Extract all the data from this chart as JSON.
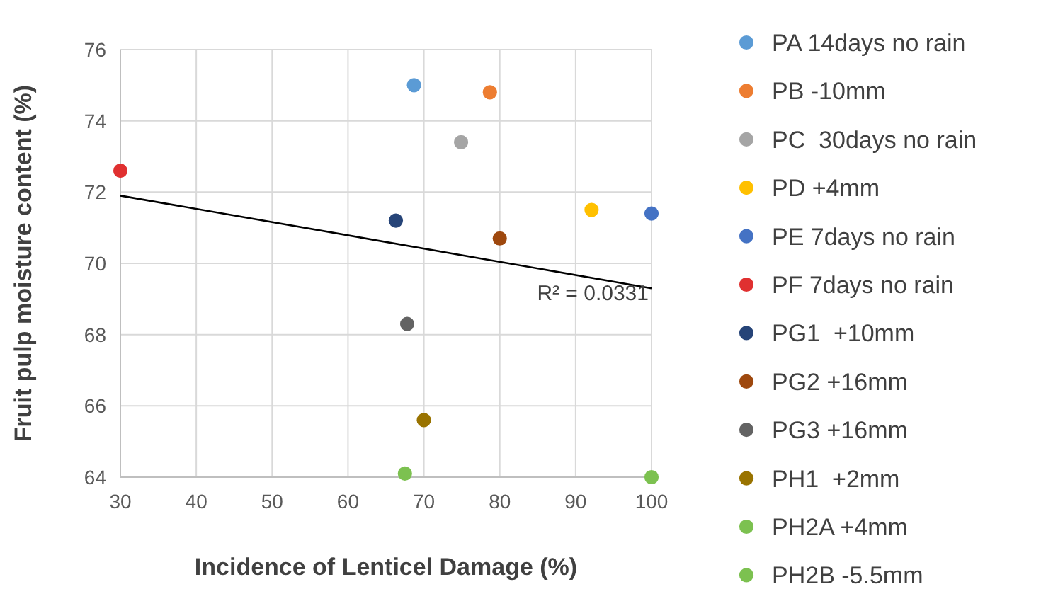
{
  "chart_data": {
    "type": "scatter",
    "xlabel": "Incidence of Lenticel Damage (%)",
    "ylabel": "Fruit pulp moisture content (%)",
    "xlim": [
      30,
      100
    ],
    "xticks": [
      30,
      40,
      50,
      60,
      70,
      80,
      90,
      100
    ],
    "ylim": [
      64,
      76
    ],
    "yticks": [
      64,
      66,
      68,
      70,
      72,
      74,
      76
    ],
    "grid": true,
    "legend": "right",
    "marker": "circle",
    "annotations": [
      "R² = 0.0331"
    ],
    "series": [
      {
        "name": "PA 14days no rain",
        "color": "#5b9bd5",
        "x": [
          68.7
        ],
        "values": [
          75.0
        ]
      },
      {
        "name": "PB -10mm",
        "color": "#ed7d31",
        "x": [
          78.7
        ],
        "values": [
          74.8
        ]
      },
      {
        "name": "PC  30days no rain",
        "color": "#a5a5a5",
        "x": [
          74.9
        ],
        "values": [
          73.4
        ]
      },
      {
        "name": "PD +4mm",
        "color": "#ffc000",
        "x": [
          92.1
        ],
        "values": [
          71.5
        ]
      },
      {
        "name": "PE 7days no rain",
        "color": "#4472c4",
        "x": [
          100
        ],
        "values": [
          71.4
        ]
      },
      {
        "name": "PF 7days no rain",
        "color": "#e03030",
        "x": [
          30
        ],
        "values": [
          72.6
        ]
      },
      {
        "name": "PG1  +10mm",
        "color": "#264478",
        "x": [
          66.3
        ],
        "values": [
          71.2
        ]
      },
      {
        "name": "PG2 +16mm",
        "color": "#9e480e",
        "x": [
          80
        ],
        "values": [
          70.7
        ]
      },
      {
        "name": "PG3 +16mm",
        "color": "#636363",
        "x": [
          67.8
        ],
        "values": [
          68.3
        ]
      },
      {
        "name": "PH1  +2mm",
        "color": "#997300",
        "x": [
          70
        ],
        "values": [
          65.6
        ]
      },
      {
        "name": "PH2A +4mm",
        "color": "#7cc150",
        "x": [
          67.5
        ],
        "values": [
          64.1
        ]
      },
      {
        "name": "PH2B -5.5mm",
        "color": "#7cc150",
        "x": [
          100
        ],
        "values": [
          64.0
        ]
      },
      {
        "type": "line",
        "color": "#000000",
        "marker": "none",
        "x": [
          30,
          100
        ],
        "values": [
          71.9,
          69.3
        ]
      }
    ]
  }
}
